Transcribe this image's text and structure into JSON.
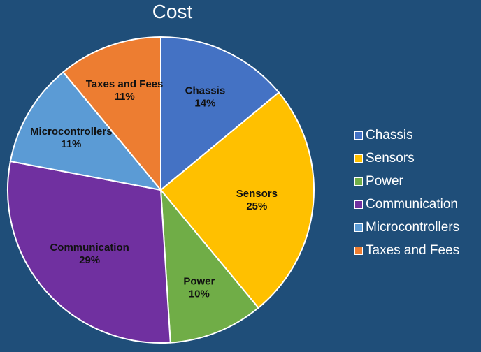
{
  "chart_data": {
    "type": "pie",
    "title": "Cost",
    "categories": [
      "Chassis",
      "Sensors",
      "Power",
      "Communication",
      "Microcontrollers",
      "Taxes and Fees"
    ],
    "values": [
      14,
      25,
      10,
      29,
      11,
      11
    ],
    "data_labels": [
      "14%",
      "25%",
      "10%",
      "29%",
      "11%",
      "11%"
    ],
    "colors": [
      "#4472c4",
      "#ffc000",
      "#70ad47",
      "#7030a0",
      "#5b9bd5",
      "#ed7d31"
    ],
    "legend_position": "right",
    "start_angle": "12 o'clock, clockwise"
  }
}
